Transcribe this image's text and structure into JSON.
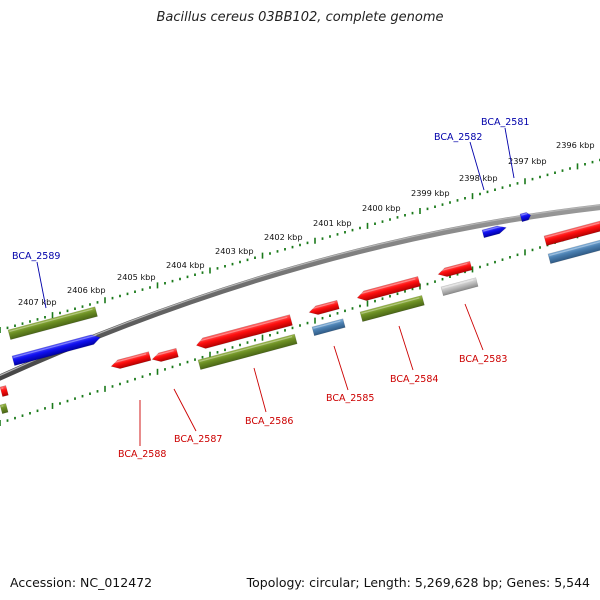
{
  "title": "Bacillus cereus 03BB102, complete genome",
  "footer": {
    "accession": "Accession: NC_012472",
    "summary": "Topology: circular; Length: 5,269,628 bp; Genes: 5,544"
  },
  "colors": {
    "red": "#ff1a1a",
    "olive": "#6b8e23",
    "blue": "#1010f0",
    "steel": "#4a7fb0",
    "gray": "#b8b8b8",
    "tick": "#1a7a1a",
    "label_red": "#cc0000",
    "label_blue": "#0000aa"
  },
  "ticks": [
    "2396 kbp",
    "2397 kbp",
    "2398 kbp",
    "2399 kbp",
    "2400 kbp",
    "2401 kbp",
    "2402 kbp",
    "2403 kbp",
    "2404 kbp",
    "2405 kbp",
    "2406 kbp",
    "2407 kbp"
  ],
  "genes": [
    {
      "label": "BCA_2581",
      "color": "blue"
    },
    {
      "label": "BCA_2582",
      "color": "blue"
    },
    {
      "label": "BCA_2583",
      "color": "red"
    },
    {
      "label": "BCA_2584",
      "color": "red"
    },
    {
      "label": "BCA_2585",
      "color": "red"
    },
    {
      "label": "BCA_2586",
      "color": "red"
    },
    {
      "label": "BCA_2587",
      "color": "red"
    },
    {
      "label": "BCA_2588",
      "color": "red"
    },
    {
      "label": "BCA_2589",
      "color": "blue"
    }
  ]
}
